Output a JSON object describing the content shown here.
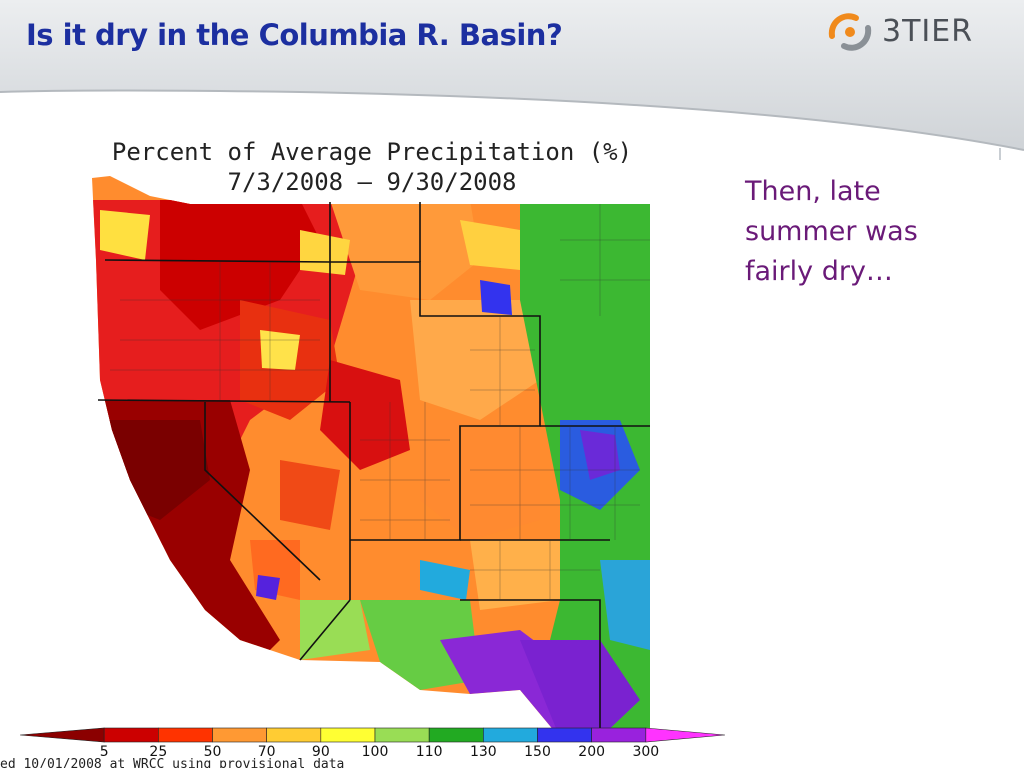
{
  "slide": {
    "title": "Is it dry in the Columbia R. Basin?",
    "note": "Then, late summer was fairly dry…",
    "logo_text": "3TIER",
    "colors": {
      "title": "#1c2fa0",
      "note": "#6a1a78",
      "header_band": "#d9dcdf"
    }
  },
  "chart_data": {
    "type": "heatmap",
    "title": "Percent of Average Precipitation (%)",
    "subtitle": "7/3/2008 – 9/30/2008",
    "region": "Western United States",
    "color_scale": {
      "ticks": [
        "5",
        "25",
        "50",
        "70",
        "90",
        "100",
        "110",
        "130",
        "150",
        "200",
        "300"
      ],
      "colors": [
        "#8b0000",
        "#cc0000",
        "#ff3300",
        "#ff9933",
        "#ffcc33",
        "#ffff33",
        "#99dd55",
        "#22aa22",
        "#22aadd",
        "#3333ee",
        "#9922dd",
        "#ff33ff"
      ]
    },
    "footer": "ed 10/01/2008 at WRCC using provisional data"
  }
}
